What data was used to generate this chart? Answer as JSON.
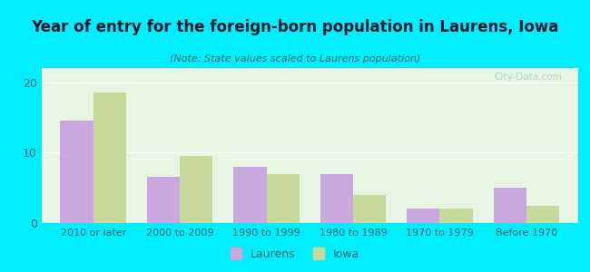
{
  "title": "Year of entry for the foreign-born population in Laurens, Iowa",
  "subtitle": "(Note: State values scaled to Laurens population)",
  "categories": [
    "2010 or later",
    "2000 to 2009",
    "1990 to 1999",
    "1980 to 1989",
    "1970 to 1979",
    "Before 1970"
  ],
  "laurens_values": [
    14.5,
    6.5,
    8.0,
    7.0,
    2.0,
    5.0
  ],
  "iowa_values": [
    18.5,
    9.5,
    7.0,
    4.0,
    2.0,
    2.5
  ],
  "laurens_color": "#c9a8e0",
  "iowa_color": "#c8d89a",
  "background_outer": "#00eeff",
  "background_inner_top": "#e8f5e8",
  "background_inner_bottom": "#f5fff5",
  "ylim": [
    0,
    22
  ],
  "yticks": [
    0,
    10,
    20
  ],
  "bar_width": 0.38,
  "legend_laurens": "Laurens",
  "legend_iowa": "Iowa",
  "watermark": "City-Data.com",
  "title_color": "#1a1a2e",
  "subtitle_color": "#336666",
  "tick_color": "#336666"
}
